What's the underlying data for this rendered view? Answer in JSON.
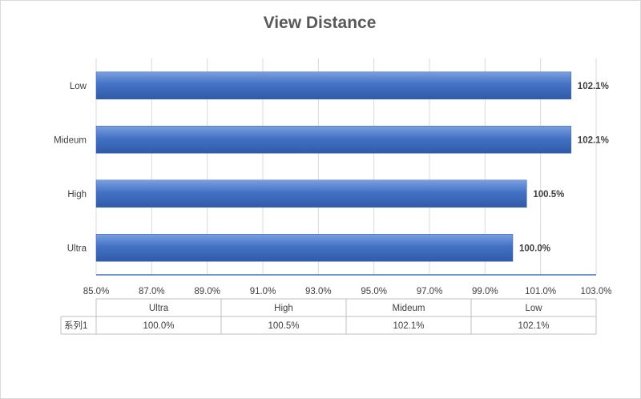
{
  "chart_data": {
    "type": "bar",
    "orientation": "horizontal",
    "title": "View Distance",
    "categories": [
      "Ultra",
      "High",
      "Mideum",
      "Low"
    ],
    "series": [
      {
        "name": "系列1",
        "values": [
          100.0,
          100.5,
          102.1,
          102.1
        ]
      }
    ],
    "value_labels": [
      "100.0%",
      "100.5%",
      "102.1%",
      "102.1%"
    ],
    "xlim": [
      85.0,
      103.0
    ],
    "x_ticks": [
      "85.0%",
      "87.0%",
      "89.0%",
      "91.0%",
      "93.0%",
      "95.0%",
      "97.0%",
      "99.0%",
      "101.0%",
      "103.0%"
    ],
    "grid": true,
    "legend": "none",
    "data_table": true,
    "colors": {
      "bar": "#4472c4",
      "grid": "#d9d9d9",
      "axis": "#4472c4"
    }
  }
}
